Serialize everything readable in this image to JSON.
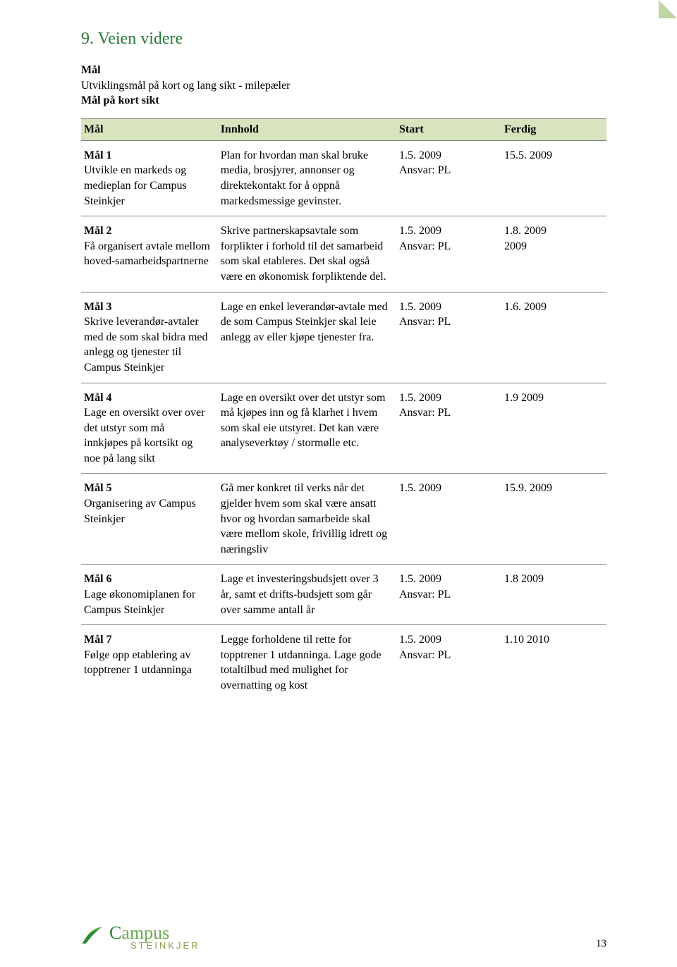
{
  "colors": {
    "heading": "#247a37",
    "table_header_bg": "#d7e4bd",
    "border": "#7f7f7f",
    "fold": "#bdd6a3",
    "text": "#000000",
    "logo_dark_green": "#2a8a3a",
    "logo_light_green": "#6aae4a",
    "logo_sub": "#8aa050"
  },
  "section_title": "9. Veien videre",
  "intro": {
    "line1_bold": "Mål",
    "line2": "Utviklingsmål på kort og lang sikt - milepæler",
    "line3_bold": "Mål på kort sikt"
  },
  "columns": {
    "c1": "Mål",
    "c2": "Innhold",
    "c3": "Start",
    "c4": "Ferdig"
  },
  "rows": [
    {
      "label": "Mål 1",
      "mal": "Utvikle en markeds og medieplan for Campus Steinkjer",
      "innhold": "Plan for hvordan man skal bruke media, brosjyrer, annonser og direktekontakt for å oppnå markedsmessige gevinster.",
      "start_a": "1.5. 2009",
      "start_b": "Ansvar: PL",
      "ferdig_a": "15.5. 2009",
      "ferdig_b": ""
    },
    {
      "label": "Mål 2",
      "mal": "Få organisert avtale mellom hoved-samarbeidspartnerne",
      "innhold": "Skrive partnerskapsavtale som forplikter i forhold til det samarbeid som skal etableres. Det skal også være en økonomisk forpliktende del.",
      "start_a": "1.5. 2009",
      "start_b": "Ansvar: PL",
      "ferdig_a": "1.8. 2009",
      "ferdig_b": "2009"
    },
    {
      "label": "Mål 3",
      "mal": "Skrive leverandør-avtaler med de som skal bidra med anlegg og tjenester til Campus Steinkjer",
      "innhold": "Lage en enkel leverandør-avtale med de som Campus Steinkjer skal leie anlegg av eller kjøpe tjenester fra.",
      "start_a": "1.5. 2009",
      "start_b": "Ansvar: PL",
      "ferdig_a": "1.6. 2009",
      "ferdig_b": ""
    },
    {
      "label": "Mål 4",
      "mal": "Lage en oversikt over over det utstyr som må innkjøpes på kortsikt og noe på lang sikt",
      "innhold": "Lage en oversikt over det utstyr som må kjøpes inn og få klarhet i hvem som skal eie utstyret. Det kan være analyseverktøy / stormølle etc.",
      "start_a": "1.5. 2009",
      "start_b": "Ansvar: PL",
      "ferdig_a": "1.9 2009",
      "ferdig_b": ""
    },
    {
      "label": "Mål 5",
      "mal": "Organisering av Campus Steinkjer",
      "innhold": "Gå mer konkret til verks når det gjelder hvem som skal være ansatt hvor og hvordan samarbeide skal være mellom skole, frivillig idrett og næringsliv",
      "start_a": "1.5. 2009",
      "start_b": "",
      "ferdig_a": "15.9. 2009",
      "ferdig_b": ""
    },
    {
      "label": "Mål 6",
      "mal": "Lage økonomiplanen for Campus Steinkjer",
      "innhold": "Lage et investeringsbudsjett over 3 år, samt et drifts-budsjett som går over samme antall år",
      "start_a": "1.5. 2009",
      "start_b": "Ansvar: PL",
      "ferdig_a": "1.8 2009",
      "ferdig_b": ""
    },
    {
      "label": "Mål 7",
      "mal": "Følge opp etablering av topptrener 1 utdanninga",
      "innhold": "Legge forholdene til rette for topptrener 1 utdanninga. Lage gode totaltilbud med mulighet for overnatting og kost",
      "start_a": "1.5. 2009",
      "start_b": "Ansvar: PL",
      "ferdig_a": "1.10 2010",
      "ferdig_b": ""
    }
  ],
  "logo": {
    "word1_cap": "C",
    "word1_rest": "ampus",
    "word2": "STEINKJER"
  },
  "page_number": "13"
}
